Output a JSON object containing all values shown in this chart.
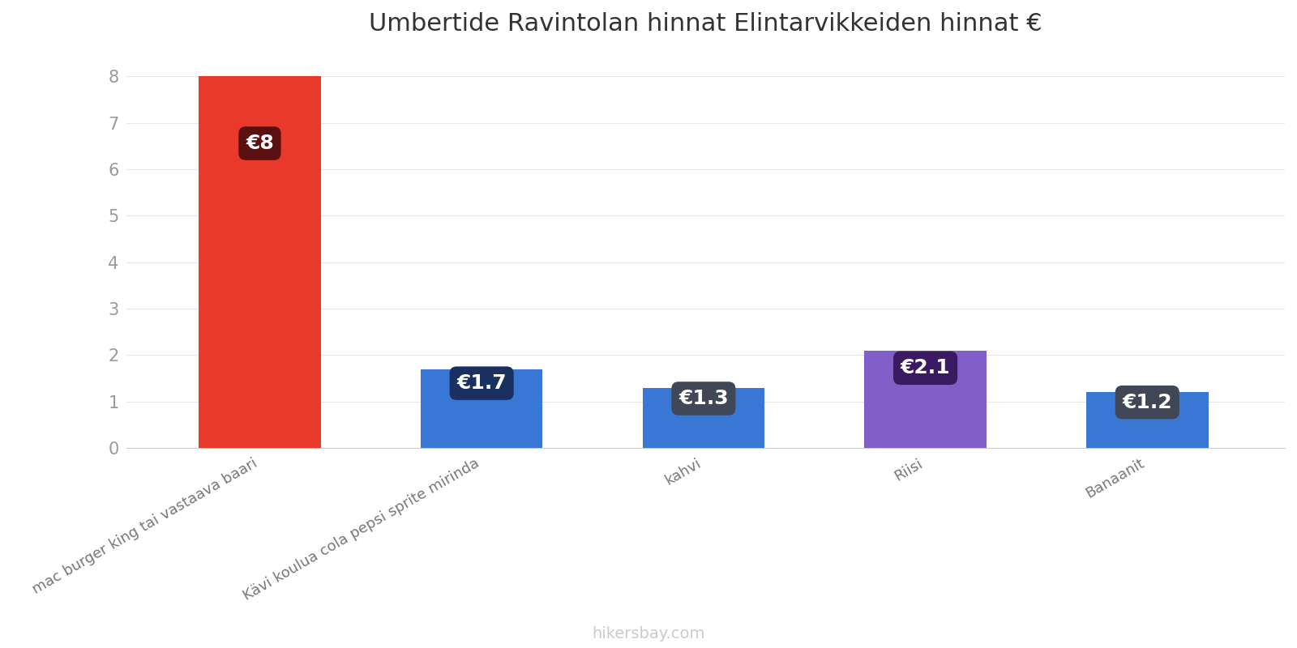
{
  "title": "Umbertide Ravintolan hinnat Elintarvikkeiden hinnat €",
  "categories": [
    "mac burger king tai vastaava baari",
    "Kävi koulua cola pepsi sprite mirinda",
    "kahvi",
    "Riisi",
    "Banaanit"
  ],
  "values": [
    8.0,
    1.7,
    1.3,
    2.1,
    1.2
  ],
  "bar_colors": [
    "#e8392a",
    "#3878d4",
    "#3878d4",
    "#8060c8",
    "#3878d4"
  ],
  "label_bg_colors": [
    "#5a1010",
    "#1a3060",
    "#404858",
    "#3a1a60",
    "#404858"
  ],
  "labels": [
    "€8",
    "€1.7",
    "€1.3",
    "€2.1",
    "€1.2"
  ],
  "ylim": [
    0,
    8.5
  ],
  "yticks": [
    0,
    1,
    2,
    3,
    4,
    5,
    6,
    7,
    8
  ],
  "background_color": "#ffffff",
  "grid_color": "#e8e8e8",
  "watermark": "hikersbay.com",
  "title_fontsize": 22,
  "label_fontsize": 18,
  "tick_fontsize": 15,
  "watermark_fontsize": 14,
  "bar_width": 0.55
}
